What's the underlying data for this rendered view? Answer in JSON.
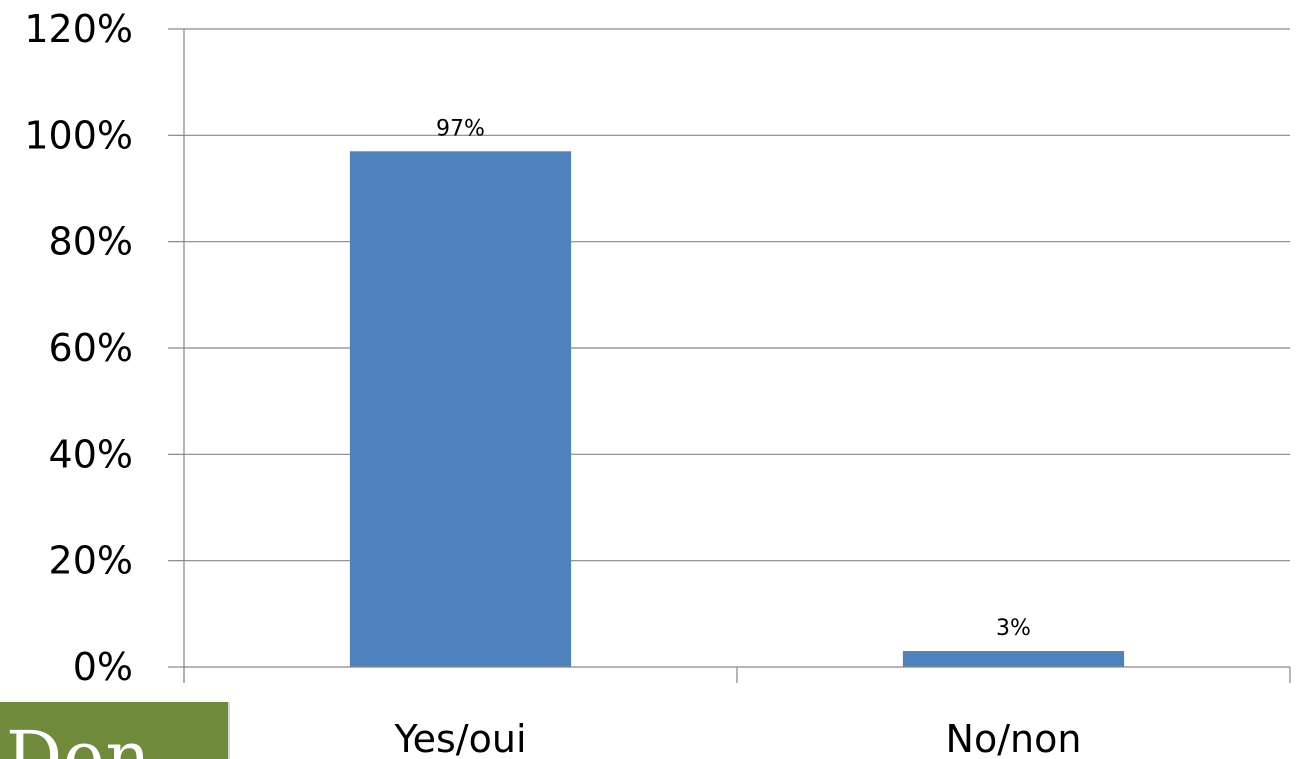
{
  "chart_data": {
    "type": "bar",
    "categories": [
      "Yes/oui",
      "No/non"
    ],
    "values": [
      97,
      3
    ],
    "data_labels": [
      "97%",
      "3%"
    ],
    "ylim": [
      0,
      120
    ],
    "yticks": [
      0,
      20,
      40,
      60,
      80,
      100,
      120
    ],
    "ytick_labels": [
      "0%",
      "20%",
      "40%",
      "60%",
      "80%",
      "100%",
      "120%"
    ],
    "y_unit": "%",
    "grid": true,
    "bar_color": "#4f81bd",
    "gridline_color": "#878787"
  },
  "logo": {
    "text": "Den",
    "background_color": "#6f8a3a"
  }
}
